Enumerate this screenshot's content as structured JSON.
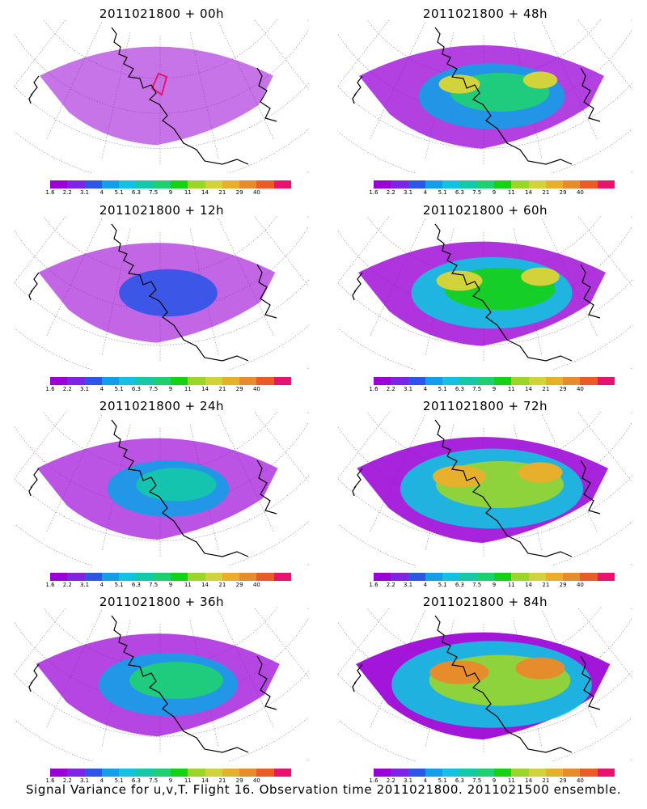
{
  "colorbar": {
    "colors": [
      "#9a00d6",
      "#7e24e8",
      "#2e55e8",
      "#129ee8",
      "#11c3e0",
      "#14c9a8",
      "#1fd070",
      "#14d214",
      "#9ad62a",
      "#d2d23a",
      "#e6b02c",
      "#e68c2c",
      "#ec5a2a",
      "#e9126e"
    ],
    "labels": [
      "1.6",
      "2.2",
      "3.1",
      "4",
      "5.1",
      "6.3",
      "7.5",
      "9",
      "11",
      "14",
      "21",
      "29",
      "40"
    ]
  },
  "panels": [
    {
      "title": "2011021800 + 00h"
    },
    {
      "title": "2011021800 + 48h"
    },
    {
      "title": "2011021800 + 12h"
    },
    {
      "title": "2011021800 + 60h"
    },
    {
      "title": "2011021800 + 24h"
    },
    {
      "title": "2011021800 + 72h"
    },
    {
      "title": "2011021800 + 36h"
    },
    {
      "title": "2011021800 + 84h"
    }
  ],
  "footer": "Signal Variance for u,v,T. Flight 16. Observation time 2011021800. 2011021500 ensemble."
}
